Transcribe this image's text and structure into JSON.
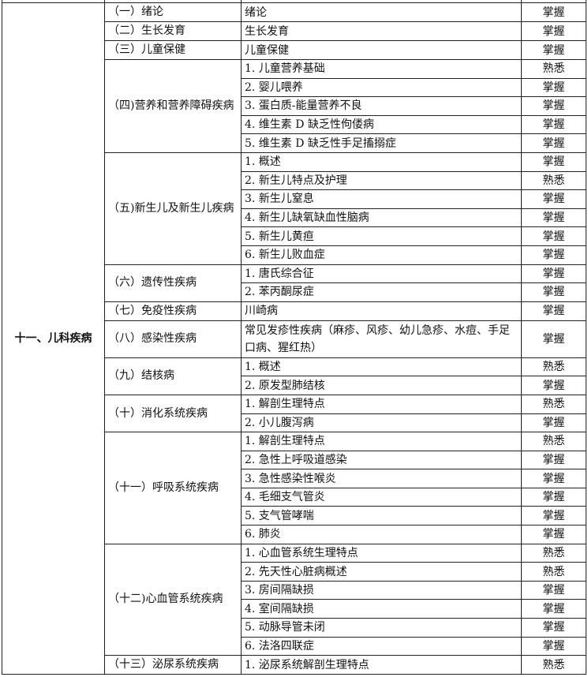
{
  "category": "十一、儿科疾病",
  "sections": [
    {
      "name": "（一）绪论",
      "items": [
        {
          "text": "绪论",
          "level": "掌握"
        }
      ]
    },
    {
      "name": "（二）生长发育",
      "items": [
        {
          "text": "生长发育",
          "level": "掌握"
        }
      ]
    },
    {
      "name": "（三）儿童保健",
      "items": [
        {
          "text": "儿童保健",
          "level": "掌握"
        }
      ]
    },
    {
      "name": "（四)营养和营养障碍疾病",
      "items": [
        {
          "text": "1. 儿童营养基础",
          "level": "熟悉"
        },
        {
          "text": "2. 婴儿喂养",
          "level": "掌握"
        },
        {
          "text": "3. 蛋白质-能量营养不良",
          "level": "掌握"
        },
        {
          "text": "4. 维生素 D 缺乏性佝偻病",
          "level": "掌握"
        },
        {
          "text": "5. 维生素 D 缺乏性手足搐搦症",
          "level": "掌握"
        }
      ]
    },
    {
      "name": "（五)新生儿及新生儿疾病",
      "items": [
        {
          "text": "1. 概述",
          "level": "掌握"
        },
        {
          "text": "2. 新生儿特点及护理",
          "level": "熟悉"
        },
        {
          "text": "3. 新生儿窒息",
          "level": "掌握"
        },
        {
          "text": "4. 新生儿缺氧缺血性脑病",
          "level": "掌握"
        },
        {
          "text": "5. 新生儿黄疸",
          "level": "掌握"
        },
        {
          "text": "6. 新生儿败血症",
          "level": "掌握"
        }
      ]
    },
    {
      "name": "（六）遗传性疾病",
      "items": [
        {
          "text": "1. 唐氏综合征",
          "level": "掌握"
        },
        {
          "text": "2. 苯丙酮尿症",
          "level": "掌握"
        }
      ]
    },
    {
      "name": "（七）免疫性疾病",
      "items": [
        {
          "text": "川崎病",
          "level": "掌握"
        }
      ]
    },
    {
      "name": "（八）感染性疾病",
      "items": [
        {
          "text": "常见发疹性疾病（麻疹、风疹、幼儿急疹、水痘、手足口病、猩红热）",
          "level": "掌握",
          "double": true
        }
      ]
    },
    {
      "name": "（九）结核病",
      "items": [
        {
          "text": "1. 概述",
          "level": "熟悉"
        },
        {
          "text": "2. 原发型肺结核",
          "level": "掌握"
        }
      ]
    },
    {
      "name": "（十）消化系统疾病",
      "items": [
        {
          "text": "1. 解剖生理特点",
          "level": "熟悉"
        },
        {
          "text": "2. 小儿腹泻病",
          "level": "掌握"
        }
      ]
    },
    {
      "name": "（十一）呼吸系统疾病",
      "items": [
        {
          "text": "1. 解剖生理特点",
          "level": "熟悉"
        },
        {
          "text": "2. 急性上呼吸道感染",
          "level": "掌握"
        },
        {
          "text": "3. 急性感染性喉炎",
          "level": "掌握"
        },
        {
          "text": "4. 毛细支气管炎",
          "level": "掌握"
        },
        {
          "text": "5. 支气管哮喘",
          "level": "掌握"
        },
        {
          "text": "6. 肺炎",
          "level": "掌握"
        }
      ]
    },
    {
      "name": "（十二)心血管系统疾病",
      "items": [
        {
          "text": "1. 心血管系统生理特点",
          "level": "熟悉"
        },
        {
          "text": "2. 先天性心脏病概述",
          "level": "熟悉"
        },
        {
          "text": "3. 房间隔缺损",
          "level": "掌握"
        },
        {
          "text": "4. 室间隔缺损",
          "level": "掌握"
        },
        {
          "text": "5. 动脉导管未闭",
          "level": "掌握"
        },
        {
          "text": "6. 法洛四联症",
          "level": "掌握"
        }
      ]
    },
    {
      "name": "（十三）泌尿系统疾病",
      "items": [
        {
          "text": "1. 泌尿系统解剖生理特点",
          "level": "熟悉"
        }
      ]
    }
  ]
}
